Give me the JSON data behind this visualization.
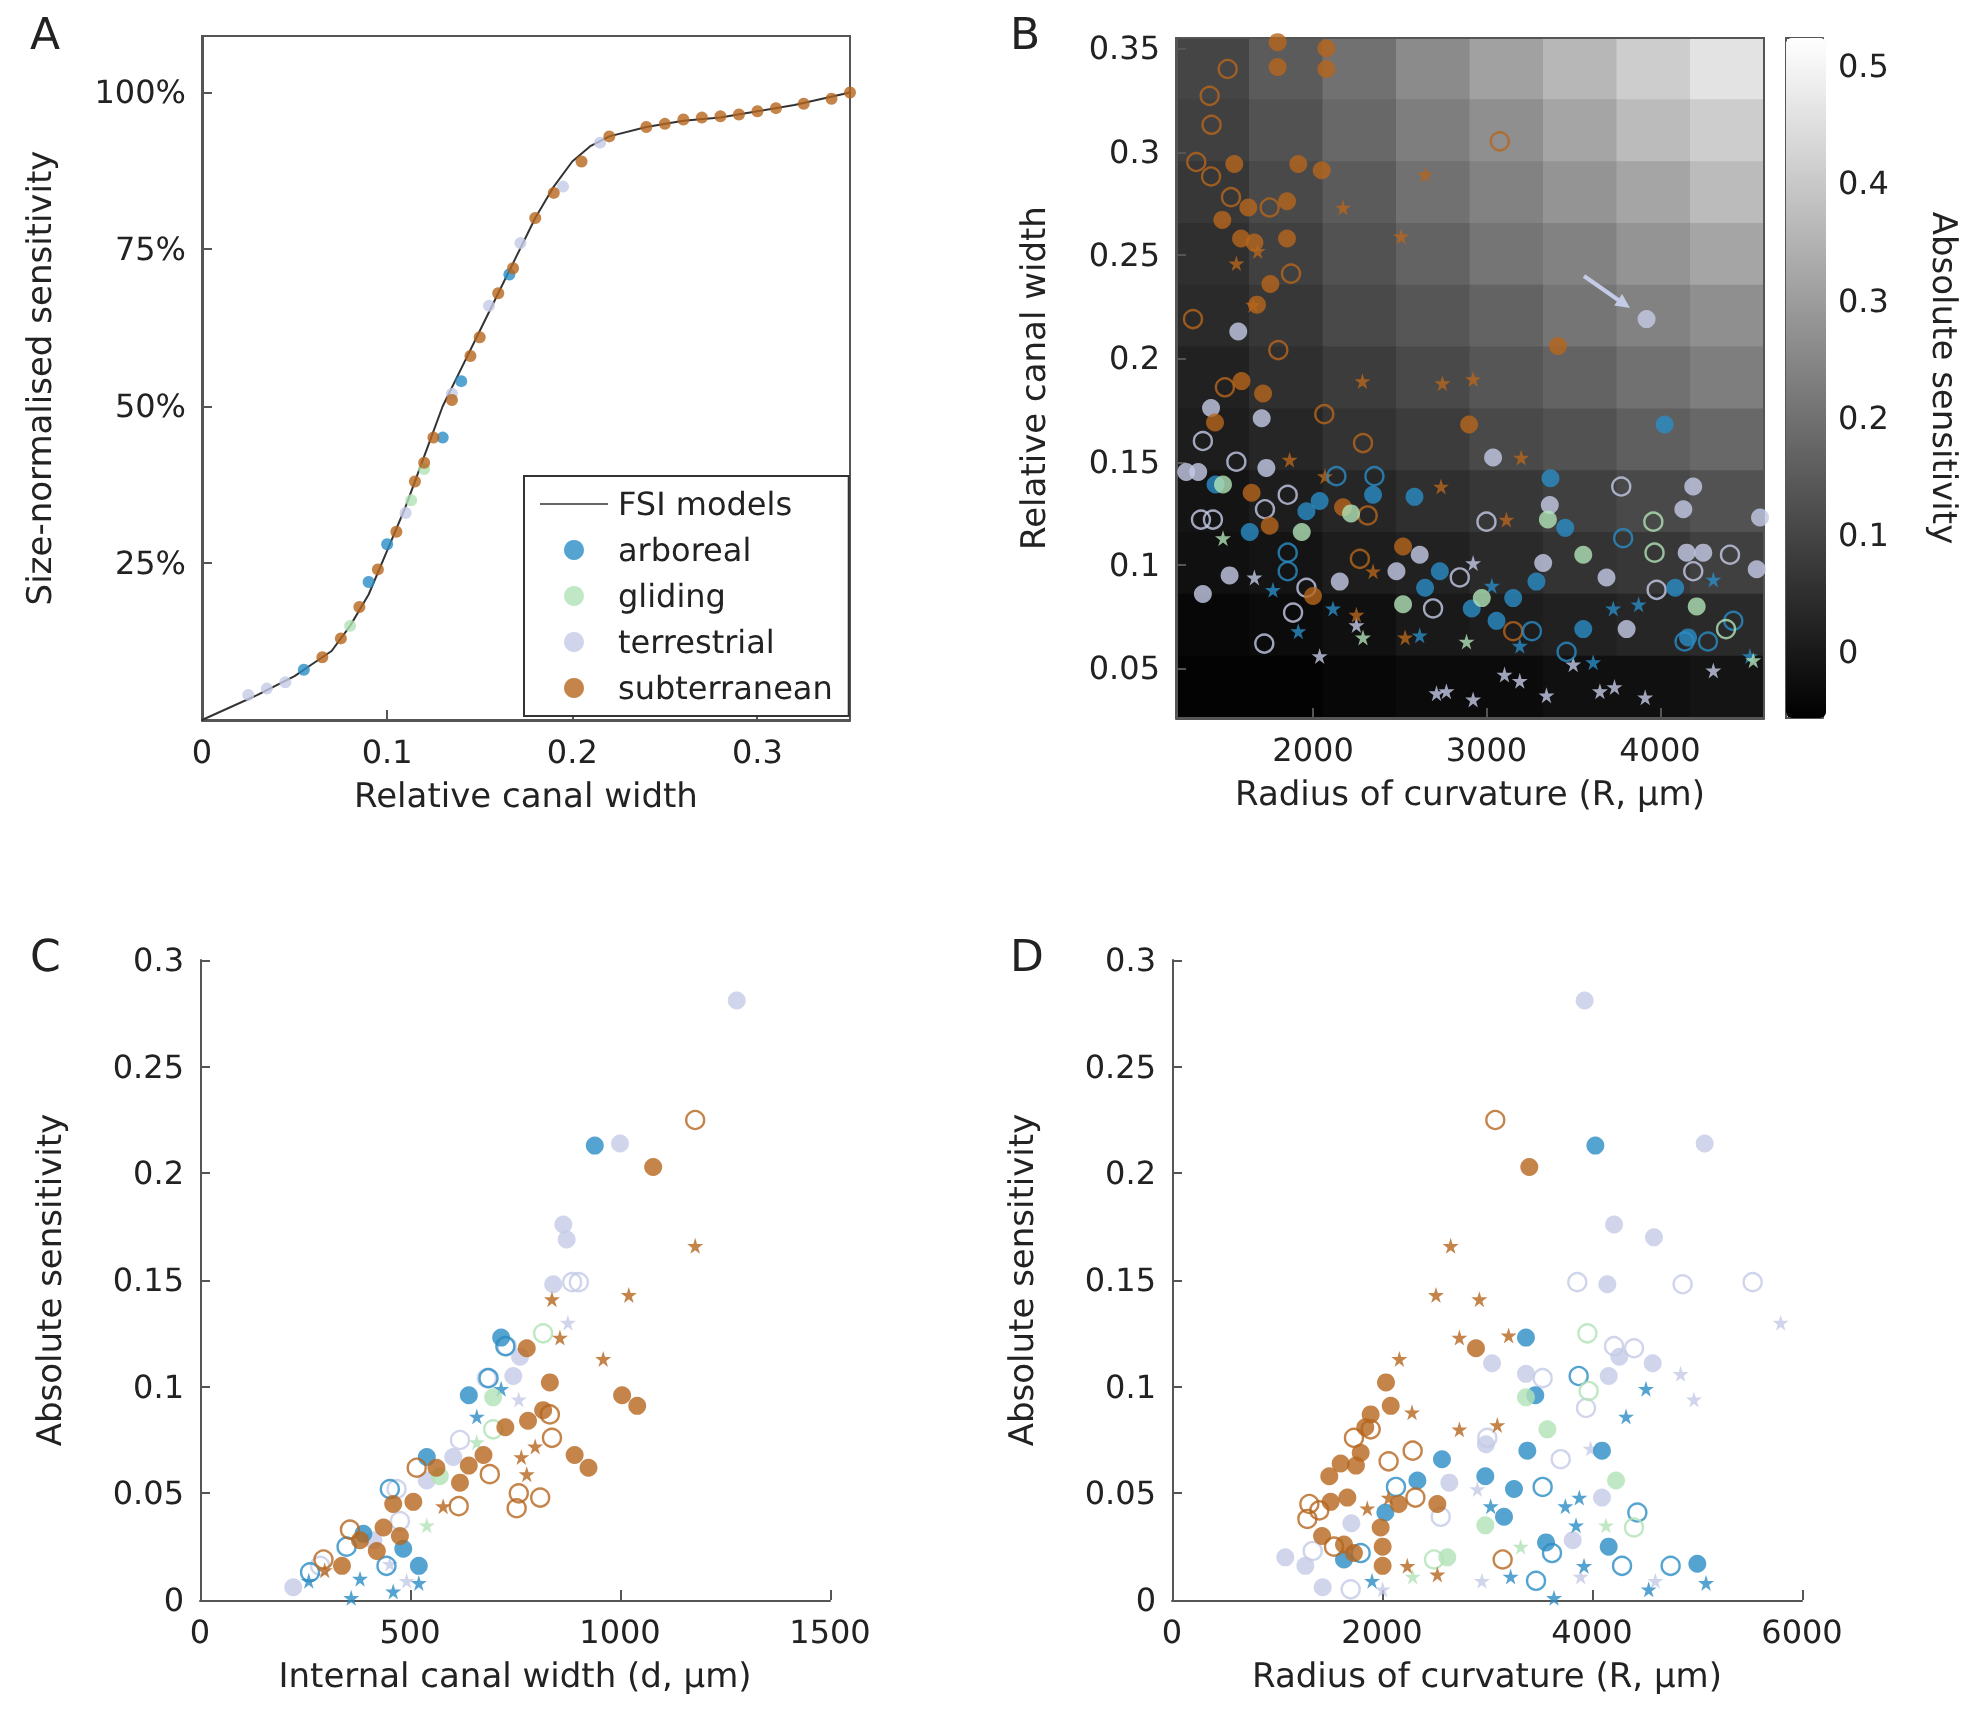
{
  "chart_data": [
    {
      "type": "scatter",
      "title": "A",
      "xlabel": "Relative canal width",
      "ylabel": "Size-normalised sensitivity",
      "xlim": [
        0,
        0.35
      ],
      "ylim": [
        0,
        109
      ],
      "xticks": [
        0,
        0.1,
        0.2,
        0.3
      ],
      "yticks": [
        {
          "value": 25,
          "label": "25%"
        },
        {
          "value": 50,
          "label": "50%"
        },
        {
          "value": 75,
          "label": "75%"
        },
        {
          "value": 100,
          "label": "100%"
        }
      ],
      "legend": "bottom right",
      "series": [
        {
          "type": "line",
          "name": "FSI models",
          "color": "#333333",
          "marker": "none",
          "x": [
            0,
            0.03,
            0.05,
            0.06,
            0.07,
            0.08,
            0.09,
            0.1,
            0.11,
            0.12,
            0.13,
            0.14,
            0.15,
            0.16,
            0.17,
            0.18,
            0.19,
            0.2,
            0.21,
            0.22,
            0.24,
            0.26,
            0.28,
            0.3,
            0.32,
            0.35
          ],
          "values": [
            0,
            4,
            7,
            9,
            11,
            15,
            20,
            27,
            34,
            42,
            50,
            56,
            62,
            68,
            74,
            80,
            85,
            89,
            91.5,
            93,
            94.5,
            95.5,
            96,
            97,
            98,
            100
          ]
        },
        {
          "name": "arboreal",
          "color": "#2b8cc4",
          "marker": "circle",
          "x": [
            0.055,
            0.09,
            0.1,
            0.13,
            0.14,
            0.166
          ],
          "values": [
            8,
            22,
            28,
            45,
            54,
            71
          ]
        },
        {
          "name": "gliding",
          "color": "#b2e2b6",
          "marker": "circle",
          "x": [
            0.08,
            0.113,
            0.12
          ],
          "values": [
            15,
            35,
            40
          ]
        },
        {
          "name": "terrestrial",
          "color": "#c4cbe6",
          "marker": "circle",
          "x": [
            0.025,
            0.035,
            0.045,
            0.11,
            0.135,
            0.155,
            0.172,
            0.195,
            0.215
          ],
          "values": [
            4,
            5,
            6,
            33,
            52,
            66,
            76,
            85,
            92
          ]
        },
        {
          "name": "subterranean",
          "color": "#b5651d",
          "marker": "circle",
          "x": [
            0.065,
            0.075,
            0.085,
            0.095,
            0.105,
            0.115,
            0.12,
            0.125,
            0.135,
            0.145,
            0.15,
            0.16,
            0.168,
            0.18,
            0.19,
            0.205,
            0.22,
            0.24,
            0.25,
            0.26,
            0.27,
            0.28,
            0.29,
            0.3,
            0.31,
            0.325,
            0.34,
            0.35
          ],
          "values": [
            10,
            13,
            18,
            24,
            30,
            38,
            41,
            45,
            51,
            58,
            61,
            68,
            72,
            80,
            84,
            89,
            93,
            94.5,
            95,
            95.7,
            96,
            96.2,
            96.5,
            97,
            97.5,
            98.2,
            99,
            100
          ]
        }
      ]
    },
    {
      "type": "heatmap",
      "clabel": "Absolute sensitivity",
      "clim": [
        -0.056,
        0.524
      ],
      "cticks": [
        0,
        0.1,
        0.2,
        0.3,
        0.4,
        0.5
      ],
      "tick_labels": false,
      "categories": [
        null,
        null,
        null,
        null,
        null,
        null,
        null,
        null
      ],
      "y_categories": [
        null,
        null,
        null,
        null,
        null,
        null,
        null,
        null,
        null,
        null,
        null
      ],
      "cells": [
        [
          0.1,
          0.15,
          0.2,
          0.26,
          0.31,
          0.36,
          0.41,
          0.46
        ],
        [
          0.09,
          0.13,
          0.18,
          0.23,
          0.27,
          0.32,
          0.37,
          0.41
        ],
        [
          0.07,
          0.11,
          0.15,
          0.2,
          0.24,
          0.28,
          0.32,
          0.37
        ],
        [
          0.05,
          0.09,
          0.13,
          0.17,
          0.21,
          0.24,
          0.28,
          0.32
        ],
        [
          0.04,
          0.07,
          0.11,
          0.14,
          0.17,
          0.21,
          0.24,
          0.27
        ],
        [
          0.02,
          0.05,
          0.08,
          0.11,
          0.14,
          0.17,
          0.2,
          0.23
        ],
        [
          0.01,
          0.03,
          0.06,
          0.08,
          0.11,
          0.13,
          0.16,
          0.18
        ],
        [
          -0.01,
          0.01,
          0.03,
          0.05,
          0.07,
          0.09,
          0.11,
          0.13
        ],
        [
          -0.02,
          -0.01,
          0.01,
          0.02,
          0.04,
          0.06,
          0.07,
          0.09
        ],
        [
          -0.04,
          -0.03,
          -0.02,
          0.0,
          0.01,
          0.02,
          0.03,
          0.04
        ],
        [
          -0.05,
          -0.05,
          -0.04,
          -0.03,
          -0.03,
          -0.02,
          -0.02,
          -0.01
        ]
      ]
    },
    {
      "type": "scatter",
      "title": "B",
      "xlabel": "Radius of curvature (R, μm)",
      "ylabel": "Relative canal width",
      "xlim": [
        1210,
        4600
      ],
      "ylim": [
        0.026,
        0.355
      ],
      "xticks": [
        2000,
        3000,
        4000
      ],
      "yticks": [
        0.05,
        0.1,
        0.15,
        0.2,
        0.25,
        0.3,
        0.35
      ],
      "series": [
        {
          "type": "scatter",
          "color": "#c4cbe6",
          "marker": "circle",
          "x": [
            3923,
            1569,
            1412,
            1704,
            3038,
            1269,
            1338,
            1731,
            3365,
            4192,
            4135,
            4577,
            1519,
            1365,
            2154,
            2481,
            2615,
            3327,
            3692,
            3808,
            4154,
            4250,
            4558
          ],
          "values": [
            0.219,
            0.213,
            0.176,
            0.171,
            0.152,
            0.145,
            0.145,
            0.147,
            0.129,
            0.138,
            0.127,
            0.123,
            0.095,
            0.086,
            0.092,
            0.097,
            0.105,
            0.101,
            0.094,
            0.069,
            0.106,
            0.106,
            0.098
          ]
        },
        {
          "type": "scatter",
          "color": "#c4cbe6",
          "marker": "open circle",
          "x": [
            1365,
            1558,
            1354,
            1423,
            1723,
            1854,
            1962,
            1885,
            1719,
            2846,
            2692,
            3000,
            3777,
            4192,
            4404,
            3981
          ],
          "values": [
            0.16,
            0.15,
            0.122,
            0.122,
            0.127,
            0.134,
            0.089,
            0.077,
            0.062,
            0.094,
            0.079,
            0.121,
            0.138,
            0.097,
            0.105,
            0.088
          ]
        },
        {
          "type": "scatter",
          "color": "#c4cbe6",
          "marker": "star",
          "x": [
            2038,
            2712,
            2769,
            2923,
            3104,
            3192,
            3346,
            3500,
            3654,
            3738,
            3915,
            4308,
            1662,
            2250,
            2923
          ],
          "values": [
            0.056,
            0.038,
            0.039,
            0.035,
            0.047,
            0.044,
            0.037,
            0.052,
            0.039,
            0.041,
            0.036,
            0.049,
            0.094,
            0.071,
            0.101
          ]
        },
        {
          "type": "scatter",
          "color": "#b5651d",
          "marker": "circle",
          "x": [
            1796,
            1796,
            2077,
            2077,
            1546,
            1915,
            2050,
            1627,
            1850,
            1477,
            1585,
            1662,
            1850,
            1754,
            1677,
            1588,
            1712,
            1435,
            3412,
            2900,
            1646,
            1750,
            2173,
            2519,
            2000
          ],
          "values": [
            0.353,
            0.341,
            0.35,
            0.34,
            0.294,
            0.294,
            0.291,
            0.273,
            0.276,
            0.267,
            0.258,
            0.256,
            0.258,
            0.236,
            0.226,
            0.189,
            0.183,
            0.169,
            0.206,
            0.168,
            0.135,
            0.119,
            0.128,
            0.109,
            0.085
          ]
        },
        {
          "type": "scatter",
          "color": "#b5651d",
          "marker": "open circle",
          "x": [
            1327,
            1415,
            1404,
            1508,
            1412,
            1527,
            1750,
            1873,
            1308,
            1800,
            1492,
            2065,
            3077,
            2288,
            2315,
            2270,
            3154
          ],
          "values": [
            0.295,
            0.313,
            0.327,
            0.34,
            0.288,
            0.278,
            0.273,
            0.241,
            0.219,
            0.204,
            0.186,
            0.173,
            0.305,
            0.159,
            0.124,
            0.103,
            0.068
          ]
        },
        {
          "type": "scatter",
          "color": "#b5651d",
          "marker": "star",
          "x": [
            2646,
            2173,
            2508,
            1558,
            1681,
            1654,
            2285,
            2746,
            2923,
            1865,
            3200,
            2069,
            2738,
            3115,
            2346,
            2250,
            2531
          ],
          "values": [
            0.289,
            0.273,
            0.259,
            0.246,
            0.252,
            0.226,
            0.189,
            0.188,
            0.19,
            0.151,
            0.152,
            0.143,
            0.138,
            0.122,
            0.097,
            0.076,
            0.065
          ]
        },
        {
          "type": "scatter",
          "color": "#2b8cc4",
          "marker": "circle",
          "x": [
            4027,
            2346,
            2585,
            3369,
            1635,
            2038,
            1962,
            2646,
            2731,
            2915,
            3154,
            3288,
            3454,
            3558,
            4088,
            4162,
            3058,
            1438
          ],
          "values": [
            0.168,
            0.134,
            0.133,
            0.142,
            0.116,
            0.131,
            0.126,
            0.089,
            0.097,
            0.079,
            0.084,
            0.092,
            0.118,
            0.069,
            0.089,
            0.065,
            0.073,
            0.139
          ]
        },
        {
          "type": "scatter",
          "color": "#2b8cc4",
          "marker": "open circle",
          "x": [
            1854,
            1854,
            2135,
            2354,
            3788,
            4142,
            4277,
            3462,
            4423,
            3262
          ],
          "values": [
            0.106,
            0.097,
            0.143,
            0.143,
            0.113,
            0.063,
            0.063,
            0.058,
            0.073,
            0.068
          ]
        },
        {
          "type": "scatter",
          "color": "#2b8cc4",
          "marker": "star",
          "x": [
            1769,
            1915,
            3031,
            3731,
            3877,
            4308,
            3192,
            3615,
            4519,
            2615,
            2115
          ],
          "values": [
            0.088,
            0.068,
            0.09,
            0.079,
            0.081,
            0.093,
            0.061,
            0.053,
            0.056,
            0.066,
            0.079
          ]
        },
        {
          "type": "scatter",
          "color": "#b2e2b6",
          "marker": "circle",
          "x": [
            1481,
            1935,
            2219,
            3354,
            3558,
            4212,
            2973,
            2519
          ],
          "values": [
            0.139,
            0.116,
            0.125,
            0.122,
            0.105,
            0.08,
            0.084,
            0.081
          ]
        },
        {
          "type": "scatter",
          "color": "#b2e2b6",
          "marker": "open circle",
          "x": [
            3962,
            3969,
            4381
          ],
          "values": [
            0.121,
            0.106,
            0.069
          ]
        },
        {
          "type": "scatter",
          "color": "#b2e2b6",
          "marker": "star",
          "x": [
            1481,
            2288,
            2885,
            4538
          ],
          "values": [
            0.113,
            0.065,
            0.063,
            0.054
          ]
        }
      ]
    },
    {
      "type": "scatter",
      "title": "C",
      "xlabel": "Internal canal width (d, μm)",
      "ylabel": "Absolute sensitivity",
      "xlim": [
        0,
        1500
      ],
      "ylim": [
        0,
        0.3
      ],
      "xticks": [
        0,
        500,
        1000,
        1500
      ],
      "yticks": [
        0,
        0.05,
        0.1,
        0.15,
        0.2,
        0.25,
        0.3
      ],
      "series": [
        {
          "type": "scatter",
          "color": "#c4cbe6",
          "marker": "circle",
          "x": [
            1278,
            1000,
            865,
            873,
            841,
            762,
            746,
            603,
            540,
            222,
            413
          ],
          "values": [
            0.281,
            0.214,
            0.176,
            0.169,
            0.148,
            0.114,
            0.105,
            0.067,
            0.056,
            0.006,
            0.028
          ]
        },
        {
          "type": "scatter",
          "color": "#c4cbe6",
          "marker": "open circle",
          "x": [
            886,
            902,
            730,
            683,
            619,
            468,
            286,
            476
          ],
          "values": [
            0.149,
            0.149,
            0.119,
            0.104,
            0.075,
            0.052,
            0.016,
            0.037
          ]
        },
        {
          "type": "scatter",
          "color": "#c4cbe6",
          "marker": "star",
          "x": [
            876,
            759,
            492,
            452
          ],
          "values": [
            0.13,
            0.094,
            0.009,
            0.017
          ]
        },
        {
          "type": "scatter",
          "color": "#2b8cc4",
          "marker": "circle",
          "x": [
            940,
            717,
            640,
            540,
            521,
            484,
            389
          ],
          "values": [
            0.213,
            0.123,
            0.096,
            0.067,
            0.016,
            0.024,
            0.031
          ]
        },
        {
          "type": "scatter",
          "color": "#2b8cc4",
          "marker": "open circle",
          "x": [
            727,
            687,
            452,
            349,
            262,
            444
          ],
          "values": [
            0.119,
            0.104,
            0.052,
            0.025,
            0.013,
            0.016
          ]
        },
        {
          "type": "scatter",
          "color": "#2b8cc4",
          "marker": "star",
          "x": [
            659,
            717,
            259,
            360,
            460,
            521,
            381
          ],
          "values": [
            0.086,
            0.099,
            0.009,
            0.001,
            0.004,
            0.008,
            0.01
          ]
        },
        {
          "type": "scatter",
          "color": "#b2e2b6",
          "marker": "circle",
          "x": [
            698,
            571
          ],
          "values": [
            0.095,
            0.058
          ]
        },
        {
          "type": "scatter",
          "color": "#b2e2b6",
          "marker": "open circle",
          "x": [
            817,
            698
          ],
          "values": [
            0.125,
            0.08
          ]
        },
        {
          "type": "scatter",
          "color": "#b2e2b6",
          "marker": "star",
          "x": [
            540,
            659
          ],
          "values": [
            0.035,
            0.074
          ]
        },
        {
          "type": "scatter",
          "color": "#b5651d",
          "marker": "circle",
          "x": [
            1079,
            778,
            833,
            1005,
            1041,
            817,
            781,
            727,
            892,
            925,
            675,
            619,
            640,
            563,
            508,
            460,
            437,
            381,
            421,
            338,
            476
          ],
          "values": [
            0.203,
            0.118,
            0.102,
            0.096,
            0.091,
            0.089,
            0.084,
            0.081,
            0.068,
            0.062,
            0.068,
            0.055,
            0.063,
            0.062,
            0.046,
            0.045,
            0.034,
            0.028,
            0.023,
            0.016,
            0.03
          ]
        },
        {
          "type": "scatter",
          "color": "#b5651d",
          "marker": "open circle",
          "x": [
            1179,
            833,
            838,
            810,
            754,
            759,
            690,
            616,
            516,
            357,
            294
          ],
          "values": [
            0.225,
            0.087,
            0.076,
            0.048,
            0.043,
            0.05,
            0.059,
            0.044,
            0.062,
            0.033,
            0.019
          ]
        },
        {
          "type": "scatter",
          "color": "#b5651d",
          "marker": "star",
          "x": [
            1179,
            1021,
            838,
            857,
            960,
            798,
            765,
            778,
            579,
            297
          ],
          "values": [
            0.166,
            0.143,
            0.141,
            0.123,
            0.113,
            0.072,
            0.067,
            0.059,
            0.044,
            0.014
          ]
        }
      ]
    },
    {
      "type": "scatter",
      "title": "D",
      "xlabel": "Radius of curvature (R, μm)",
      "ylabel": "Absolute sensitivity",
      "xlim": [
        0,
        6000
      ],
      "ylim": [
        0,
        0.3
      ],
      "xticks": [
        0,
        2000,
        4000,
        6000
      ],
      "yticks": [
        0,
        0.05,
        0.1,
        0.15,
        0.2,
        0.25,
        0.3
      ],
      "series": [
        {
          "type": "scatter",
          "color": "#c4cbe6",
          "marker": "circle",
          "x": [
            3930,
            5073,
            4210,
            4590,
            4146,
            4260,
            4578,
            3048,
            3371,
            4159,
            2990,
            2641,
            1079,
            1270,
            1435,
            4095,
            3816,
            1708
          ],
          "values": [
            0.281,
            0.214,
            0.176,
            0.17,
            0.148,
            0.114,
            0.111,
            0.111,
            0.106,
            0.105,
            0.073,
            0.055,
            0.02,
            0.016,
            0.006,
            0.048,
            0.028,
            0.036
          ]
        },
        {
          "type": "scatter",
          "color": "#c4cbe6",
          "marker": "open circle",
          "x": [
            3860,
            4863,
            5530,
            4210,
            4400,
            3530,
            3943,
            3702,
            3003,
            1702,
            1340,
            2559
          ],
          "values": [
            0.149,
            0.148,
            0.149,
            0.119,
            0.118,
            0.104,
            0.09,
            0.066,
            0.076,
            0.005,
            0.023,
            0.039
          ]
        },
        {
          "type": "scatter",
          "color": "#c4cbe6",
          "marker": "star",
          "x": [
            5797,
            4844,
            4971,
            3987,
            2908,
            2006,
            2952,
            4603,
            3892
          ],
          "values": [
            0.13,
            0.106,
            0.094,
            0.071,
            0.052,
            0.005,
            0.009,
            0.009,
            0.011
          ]
        },
        {
          "type": "scatter",
          "color": "#2b8cc4",
          "marker": "circle",
          "x": [
            4032,
            3371,
            3460,
            4095,
            3384,
            2984,
            2571,
            2337,
            3257,
            3162,
            4159,
            5003,
            3562,
            2032,
            1638
          ],
          "values": [
            0.213,
            0.123,
            0.096,
            0.07,
            0.07,
            0.058,
            0.066,
            0.056,
            0.052,
            0.039,
            0.025,
            0.017,
            0.027,
            0.041,
            0.019
          ]
        },
        {
          "type": "scatter",
          "color": "#2b8cc4",
          "marker": "open circle",
          "x": [
            3873,
            3530,
            4432,
            4749,
            4286,
            3467,
            2133,
            3619,
            1797
          ],
          "values": [
            0.105,
            0.053,
            0.041,
            0.016,
            0.016,
            0.009,
            0.053,
            0.022,
            0.022
          ]
        },
        {
          "type": "scatter",
          "color": "#2b8cc4",
          "marker": "star",
          "x": [
            4514,
            4324,
            3879,
            3848,
            3746,
            3035,
            5086,
            4540,
            3638,
            3924,
            1905,
            3225
          ],
          "values": [
            0.099,
            0.086,
            0.048,
            0.035,
            0.044,
            0.044,
            0.008,
            0.005,
            0.001,
            0.016,
            0.009,
            0.011
          ]
        },
        {
          "type": "scatter",
          "color": "#b2e2b6",
          "marker": "circle",
          "x": [
            3575,
            3371,
            4229,
            2984,
            2622
          ],
          "values": [
            0.08,
            0.095,
            0.056,
            0.035,
            0.02
          ]
        },
        {
          "type": "scatter",
          "color": "#b2e2b6",
          "marker": "open circle",
          "x": [
            3956,
            3968,
            4400,
            2495
          ],
          "values": [
            0.125,
            0.098,
            0.034,
            0.019
          ]
        },
        {
          "type": "scatter",
          "color": "#b2e2b6",
          "marker": "star",
          "x": [
            4133,
            2292,
            3321
          ],
          "values": [
            0.035,
            0.011,
            0.025
          ]
        },
        {
          "type": "scatter",
          "color": "#b5651d",
          "marker": "circle",
          "x": [
            3403,
            2895,
            2038,
            2083,
            1892,
            1841,
            1797,
            1606,
            1498,
            1752,
            1670,
            1511,
            2159,
            2527,
            1429,
            1638,
            1987,
            2006,
            2006,
            1733
          ],
          "values": [
            0.203,
            0.118,
            0.102,
            0.091,
            0.087,
            0.081,
            0.069,
            0.064,
            0.058,
            0.063,
            0.048,
            0.046,
            0.045,
            0.045,
            0.03,
            0.026,
            0.034,
            0.025,
            0.016,
            0.022
          ]
        },
        {
          "type": "scatter",
          "color": "#b5651d",
          "marker": "open circle",
          "x": [
            3079,
            1892,
            2063,
            2292,
            1308,
            1289,
            1403,
            1733,
            2318,
            3149,
            1543
          ],
          "values": [
            0.225,
            0.08,
            0.065,
            0.07,
            0.045,
            0.038,
            0.042,
            0.076,
            0.048,
            0.019,
            0.025
          ]
        },
        {
          "type": "scatter",
          "color": "#b5651d",
          "marker": "star",
          "x": [
            2654,
            2514,
            2927,
            3206,
            2737,
            2165,
            2286,
            3098,
            2737,
            1860,
            2063,
            2241,
            2527
          ],
          "values": [
            0.166,
            0.143,
            0.141,
            0.124,
            0.123,
            0.113,
            0.088,
            0.082,
            0.08,
            0.043,
            0.048,
            0.016,
            0.012
          ]
        }
      ]
    }
  ]
}
